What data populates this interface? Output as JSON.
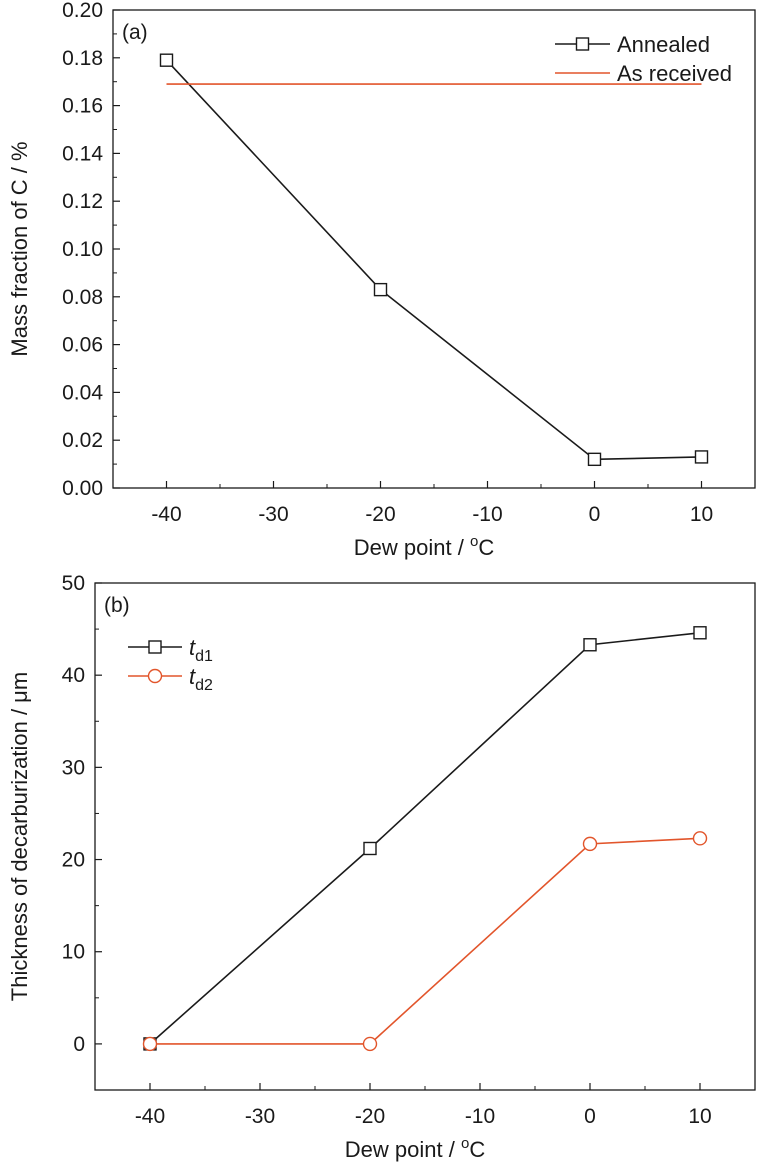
{
  "chart_data": [
    {
      "type": "line",
      "panel_label": "(a)",
      "xlabel": "Dew point / ",
      "xlabel_sup": "o",
      "xlabel_unit": "C",
      "ylabel": "Mass fraction of C / %",
      "xlim": [
        -45,
        15
      ],
      "ylim": [
        0,
        0.2
      ],
      "xticks": [
        -40,
        -30,
        -20,
        -10,
        0,
        10
      ],
      "yticks": [
        0.0,
        0.02,
        0.04,
        0.06,
        0.08,
        0.1,
        0.12,
        0.14,
        0.16,
        0.18,
        0.2
      ],
      "ytick_labels": [
        "0.00",
        "0.02",
        "0.04",
        "0.06",
        "0.08",
        "0.10",
        "0.12",
        "0.14",
        "0.16",
        "0.18",
        "0.20"
      ],
      "grid": false,
      "legend_position": "top-right",
      "series": [
        {
          "name": "Annealed",
          "color": "#1a1a1a",
          "marker": "square",
          "x": [
            -40,
            -20,
            0,
            10
          ],
          "y": [
            0.179,
            0.083,
            0.012,
            0.013
          ]
        },
        {
          "name": "As received",
          "color": "#e2552b",
          "marker": "none",
          "x": [
            -40,
            10
          ],
          "y": [
            0.169,
            0.169
          ]
        }
      ]
    },
    {
      "type": "line",
      "panel_label": "(b)",
      "xlabel": "Dew point / ",
      "xlabel_sup": "o",
      "xlabel_unit": "C",
      "ylabel": "Thickness of decarburization / μm",
      "xlim": [
        -45,
        15
      ],
      "ylim": [
        -5,
        50
      ],
      "xticks": [
        -40,
        -30,
        -20,
        -10,
        0,
        10
      ],
      "yticks": [
        0,
        10,
        20,
        30,
        40,
        50
      ],
      "ytick_labels": [
        "0",
        "10",
        "20",
        "30",
        "40",
        "50"
      ],
      "grid": false,
      "legend_position": "top-left",
      "series": [
        {
          "name": "t",
          "name_sub": "d1",
          "color": "#1a1a1a",
          "marker": "square",
          "x": [
            -40,
            -20,
            0,
            10
          ],
          "y": [
            0,
            21.2,
            43.3,
            44.6
          ]
        },
        {
          "name": "t",
          "name_sub": "d2",
          "color": "#e2552b",
          "marker": "circle",
          "x": [
            -40,
            -20,
            0,
            10
          ],
          "y": [
            0,
            0,
            21.7,
            22.3
          ]
        }
      ]
    }
  ]
}
